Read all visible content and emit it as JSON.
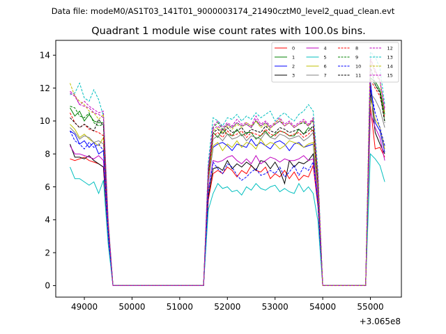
{
  "figure_suptitle": "Data file: modeM0/AS1T03_141T01_9000003174_21490cztM0_level2_quad_clean.evt",
  "chart_data": {
    "type": "line",
    "title": "Quadrant 1 module wise count rates with 100.0s bins.",
    "xlabel": "",
    "ylabel": "",
    "x_offset_label": "+3.065e8",
    "xlim": [
      48400,
      55650
    ],
    "ylim": [
      -0.7,
      14.9
    ],
    "xticks": [
      49000,
      50000,
      51000,
      52000,
      53000,
      54000,
      55000
    ],
    "yticks": [
      0,
      2,
      4,
      6,
      8,
      10,
      12,
      14
    ],
    "grid": false,
    "legend": {
      "position": "top-right",
      "columns": 4
    },
    "x": [
      48700,
      48800,
      48900,
      49000,
      49100,
      49200,
      49300,
      49400,
      49500,
      49600,
      49700,
      49800,
      49900,
      50000,
      50100,
      50200,
      50300,
      50400,
      50500,
      50600,
      50700,
      50800,
      50900,
      51000,
      51100,
      51200,
      51300,
      51400,
      51500,
      51600,
      51700,
      51800,
      51900,
      52000,
      52100,
      52200,
      52300,
      52400,
      52500,
      52600,
      52700,
      52800,
      52900,
      53000,
      53100,
      53200,
      53300,
      53400,
      53500,
      53600,
      53700,
      53800,
      53900,
      54000,
      54100,
      54200,
      54300,
      54400,
      54500,
      54600,
      54700,
      54800,
      54900,
      55000,
      55100,
      55200,
      55300
    ],
    "series": [
      {
        "name": "0",
        "color": "#ff0000",
        "dash": "solid",
        "values": [
          7.7,
          7.6,
          7.7,
          7.8,
          7.6,
          7.5,
          7.4,
          7.2,
          2.8,
          0.0,
          0,
          0,
          0,
          0,
          0,
          0,
          0,
          0,
          0,
          0,
          0,
          0,
          0,
          0,
          0,
          0,
          0,
          0,
          0,
          5.2,
          6.8,
          7.0,
          6.8,
          7.2,
          7.0,
          6.6,
          7.0,
          6.8,
          7.3,
          7.0,
          6.9,
          7.2,
          6.5,
          6.8,
          6.6,
          7.0,
          6.5,
          6.9,
          6.4,
          6.7,
          6.6,
          7.3,
          4.8,
          0.0,
          0,
          0,
          0,
          0,
          0,
          0,
          0,
          0,
          0,
          10.9,
          8.3,
          8.4,
          7.8
        ]
      },
      {
        "name": "1",
        "color": "#008000",
        "dash": "solid",
        "values": [
          10.8,
          10.3,
          10.6,
          10.0,
          10.4,
          10.0,
          9.9,
          9.9,
          3.8,
          0.0,
          0,
          0,
          0,
          0,
          0,
          0,
          0,
          0,
          0,
          0,
          0,
          0,
          0,
          0,
          0,
          0,
          0,
          0,
          0,
          6.9,
          9.3,
          9.0,
          9.5,
          9.2,
          9.1,
          9.5,
          9.1,
          9.3,
          9.3,
          8.9,
          9.1,
          9.4,
          9.0,
          9.2,
          9.4,
          9.3,
          9.1,
          9.1,
          9.5,
          9.2,
          9.6,
          9.4,
          6.1,
          0.0,
          0,
          0,
          0,
          0,
          0,
          0,
          0,
          0,
          0,
          12.6,
          12.4,
          11.9,
          10.4
        ]
      },
      {
        "name": "2",
        "color": "#0000ff",
        "dash": "solid",
        "values": [
          9.4,
          9.2,
          8.6,
          8.8,
          8.4,
          8.7,
          8.0,
          8.2,
          3.0,
          0.0,
          0,
          0,
          0,
          0,
          0,
          0,
          0,
          0,
          0,
          0,
          0,
          0,
          0,
          0,
          0,
          0,
          0,
          0,
          0,
          6.3,
          8.4,
          8.6,
          8.7,
          8.5,
          8.2,
          8.6,
          8.5,
          8.4,
          8.9,
          8.5,
          8.7,
          8.5,
          8.3,
          8.7,
          8.8,
          8.6,
          8.2,
          8.6,
          8.7,
          8.4,
          8.5,
          8.6,
          5.6,
          0.0,
          0,
          0,
          0,
          0,
          0,
          0,
          0,
          0,
          0,
          12.4,
          9.9,
          9.4,
          8.1
        ]
      },
      {
        "name": "3",
        "color": "#000000",
        "dash": "solid",
        "values": [
          8.6,
          7.8,
          7.8,
          7.7,
          7.9,
          7.6,
          7.4,
          7.2,
          2.9,
          0.0,
          0,
          0,
          0,
          0,
          0,
          0,
          0,
          0,
          0,
          0,
          0,
          0,
          0,
          0,
          0,
          0,
          0,
          0,
          0,
          5.4,
          7.1,
          7.2,
          7.0,
          7.6,
          7.1,
          7.4,
          7.2,
          7.5,
          7.3,
          7.0,
          7.6,
          7.5,
          7.1,
          7.5,
          7.0,
          6.2,
          7.6,
          7.2,
          7.5,
          7.4,
          7.6,
          8.0,
          5.0,
          0.0,
          0,
          0,
          0,
          0,
          0,
          0,
          0,
          0,
          0,
          11.9,
          9.3,
          8.6,
          8.0
        ]
      },
      {
        "name": "4",
        "color": "#bf00bf",
        "dash": "solid",
        "values": [
          8.5,
          8.0,
          8.0,
          7.9,
          7.8,
          7.7,
          7.9,
          7.6,
          3.0,
          0.0,
          0,
          0,
          0,
          0,
          0,
          0,
          0,
          0,
          0,
          0,
          0,
          0,
          0,
          0,
          0,
          0,
          0,
          0,
          0,
          5.8,
          7.6,
          7.5,
          7.6,
          7.8,
          7.9,
          7.6,
          7.4,
          7.7,
          7.4,
          7.9,
          7.4,
          7.6,
          7.8,
          7.7,
          7.5,
          7.7,
          7.6,
          7.6,
          7.7,
          7.9,
          7.6,
          7.7,
          5.2,
          0.0,
          0,
          0,
          0,
          0,
          0,
          0,
          0,
          0,
          0,
          10.5,
          9.6,
          9.0,
          7.6
        ]
      },
      {
        "name": "5",
        "color": "#00bfbf",
        "dash": "solid",
        "values": [
          7.2,
          6.5,
          6.5,
          6.3,
          6.1,
          6.3,
          5.6,
          6.4,
          2.5,
          0.0,
          0,
          0,
          0,
          0,
          0,
          0,
          0,
          0,
          0,
          0,
          0,
          0,
          0,
          0,
          0,
          0,
          0,
          0,
          0,
          4.6,
          5.6,
          6.2,
          5.9,
          6.0,
          5.7,
          5.8,
          5.5,
          6.0,
          5.8,
          6.2,
          5.9,
          5.8,
          6.0,
          6.1,
          5.7,
          5.9,
          5.7,
          5.6,
          6.2,
          5.7,
          6.0,
          5.6,
          3.9,
          0.0,
          0,
          0,
          0,
          0,
          0,
          0,
          0,
          0,
          0,
          8.0,
          7.7,
          7.3,
          6.3
        ]
      },
      {
        "name": "6",
        "color": "#bfbf00",
        "dash": "solid",
        "values": [
          9.8,
          9.5,
          9.0,
          9.2,
          8.9,
          8.7,
          8.5,
          9.0,
          3.4,
          0.0,
          0,
          0,
          0,
          0,
          0,
          0,
          0,
          0,
          0,
          0,
          0,
          0,
          0,
          0,
          0,
          0,
          0,
          0,
          0,
          6.4,
          8.5,
          8.7,
          8.2,
          8.6,
          8.4,
          8.8,
          8.4,
          8.7,
          8.6,
          8.3,
          8.9,
          8.5,
          8.7,
          8.6,
          8.3,
          8.5,
          8.8,
          8.7,
          8.6,
          8.4,
          8.6,
          8.7,
          5.8,
          0.0,
          0,
          0,
          0,
          0,
          0,
          0,
          0,
          0,
          0,
          11.4,
          10.1,
          9.6,
          8.3
        ]
      },
      {
        "name": "7",
        "color": "#808080",
        "dash": "solid",
        "values": [
          9.6,
          9.3,
          8.9,
          9.1,
          9.0,
          8.7,
          8.8,
          8.6,
          3.3,
          0.0,
          0,
          0,
          0,
          0,
          0,
          0,
          0,
          0,
          0,
          0,
          0,
          0,
          0,
          0,
          0,
          0,
          0,
          0,
          0,
          6.6,
          8.9,
          9.1,
          8.8,
          9.2,
          8.9,
          9.0,
          9.2,
          8.8,
          9.1,
          9.0,
          8.9,
          9.3,
          9.0,
          8.9,
          9.2,
          9.1,
          8.9,
          9.0,
          9.1,
          8.8,
          9.0,
          9.3,
          6.0,
          0.0,
          0,
          0,
          0,
          0,
          0,
          0,
          0,
          0,
          0,
          11.7,
          11.3,
          10.7,
          9.6
        ]
      },
      {
        "name": "8",
        "color": "#ff0000",
        "dash": "dashed",
        "values": [
          10.5,
          9.9,
          9.6,
          9.8,
          9.5,
          9.4,
          9.3,
          9.1,
          3.6,
          0.0,
          0,
          0,
          0,
          0,
          0,
          0,
          0,
          0,
          0,
          0,
          0,
          0,
          0,
          0,
          0,
          0,
          0,
          0,
          0,
          6.6,
          9.1,
          9.3,
          9.0,
          9.4,
          9.1,
          9.2,
          9.4,
          9.0,
          9.3,
          9.2,
          9.1,
          9.5,
          9.2,
          9.1,
          9.4,
          9.3,
          9.1,
          9.2,
          9.3,
          9.0,
          9.2,
          9.5,
          6.2,
          0.0,
          0,
          0,
          0,
          0,
          0,
          0,
          0,
          0,
          0,
          12.5,
          12.0,
          11.5,
          10.2
        ]
      },
      {
        "name": "9",
        "color": "#008000",
        "dash": "dashed",
        "values": [
          10.9,
          10.8,
          10.3,
          10.2,
          10.5,
          9.9,
          9.7,
          9.8,
          3.7,
          0.0,
          0,
          0,
          0,
          0,
          0,
          0,
          0,
          0,
          0,
          0,
          0,
          0,
          0,
          0,
          0,
          0,
          0,
          0,
          0,
          6.9,
          9.6,
          9.9,
          9.5,
          9.8,
          9.6,
          9.9,
          9.7,
          9.8,
          9.6,
          10.0,
          9.7,
          9.9,
          9.6,
          9.8,
          10.0,
          9.7,
          9.9,
          9.6,
          9.8,
          9.9,
          9.7,
          10.0,
          6.5,
          0.0,
          0,
          0,
          0,
          0,
          0,
          0,
          0,
          0,
          0,
          12.7,
          12.2,
          11.8,
          10.0
        ]
      },
      {
        "name": "10",
        "color": "#0000ff",
        "dash": "dashed",
        "values": [
          9.4,
          8.8,
          8.6,
          8.3,
          8.7,
          8.4,
          8.6,
          8.2,
          3.1,
          0.0,
          0,
          0,
          0,
          0,
          0,
          0,
          0,
          0,
          0,
          0,
          0,
          0,
          0,
          0,
          0,
          0,
          0,
          0,
          0,
          5.7,
          7.5,
          7.1,
          6.8,
          7.4,
          7.2,
          6.7,
          6.4,
          6.6,
          6.9,
          7.1,
          6.7,
          6.8,
          7.0,
          6.8,
          7.2,
          6.6,
          6.9,
          7.3,
          6.7,
          7.2,
          7.0,
          7.5,
          4.9,
          0.0,
          0,
          0,
          0,
          0,
          0,
          0,
          0,
          0,
          0,
          12.0,
          10.5,
          9.6,
          8.5
        ]
      },
      {
        "name": "11",
        "color": "#000000",
        "dash": "dashed",
        "values": [
          10.2,
          9.9,
          9.6,
          9.8,
          9.6,
          9.4,
          10.1,
          9.7,
          3.7,
          0.0,
          0,
          0,
          0,
          0,
          0,
          0,
          0,
          0,
          0,
          0,
          0,
          0,
          0,
          0,
          0,
          0,
          0,
          0,
          0,
          6.8,
          9.3,
          9.5,
          9.2,
          9.6,
          9.3,
          9.4,
          9.6,
          9.2,
          9.5,
          9.4,
          9.3,
          9.7,
          9.4,
          9.3,
          9.6,
          9.5,
          9.3,
          9.4,
          9.5,
          9.2,
          9.4,
          9.7,
          6.3,
          0.0,
          0,
          0,
          0,
          0,
          0,
          0,
          0,
          0,
          0,
          13.3,
          12.2,
          11.7,
          9.9
        ]
      },
      {
        "name": "12",
        "color": "#bf00bf",
        "dash": "dashed",
        "values": [
          11.8,
          11.6,
          11.0,
          11.2,
          10.9,
          10.7,
          10.5,
          10.6,
          3.9,
          0.0,
          0,
          0,
          0,
          0,
          0,
          0,
          0,
          0,
          0,
          0,
          0,
          0,
          0,
          0,
          0,
          0,
          0,
          0,
          0,
          7.2,
          9.7,
          10.0,
          9.6,
          9.9,
          9.7,
          10.1,
          9.8,
          9.9,
          9.7,
          10.3,
          9.8,
          10.0,
          9.7,
          9.9,
          10.2,
          9.8,
          10.0,
          9.7,
          9.9,
          10.1,
          9.8,
          10.2,
          6.7,
          0.0,
          0,
          0,
          0,
          0,
          0,
          0,
          0,
          0,
          0,
          13.6,
          13.0,
          12.4,
          10.8
        ]
      },
      {
        "name": "13",
        "color": "#00bfbf",
        "dash": "dashed",
        "values": [
          11.6,
          11.7,
          12.3,
          11.4,
          11.2,
          11.9,
          11.3,
          10.3,
          4.0,
          0.0,
          0,
          0,
          0,
          0,
          0,
          0,
          0,
          0,
          0,
          0,
          0,
          0,
          0,
          0,
          0,
          0,
          0,
          0,
          0,
          7.5,
          10.2,
          10.0,
          9.7,
          10.2,
          10.1,
          10.4,
          10.0,
          10.3,
          10.1,
          10.5,
          10.2,
          10.4,
          10.6,
          10.0,
          10.3,
          10.5,
          10.2,
          10.0,
          10.4,
          10.6,
          11.0,
          10.6,
          7.0,
          0.0,
          0,
          0,
          0,
          0,
          0,
          0,
          0,
          0,
          0,
          14.2,
          13.9,
          13.2,
          11.0
        ]
      },
      {
        "name": "14",
        "color": "#bfbf00",
        "dash": "dashed",
        "values": [
          12.3,
          11.5,
          11.2,
          11.0,
          10.6,
          10.5,
          10.1,
          10.4,
          3.9,
          0.0,
          0,
          0,
          0,
          0,
          0,
          0,
          0,
          0,
          0,
          0,
          0,
          0,
          0,
          0,
          0,
          0,
          0,
          0,
          0,
          7.0,
          9.4,
          9.6,
          9.3,
          9.7,
          9.5,
          9.8,
          9.6,
          9.9,
          9.7,
          10.0,
          9.6,
          9.8,
          9.5,
          9.9,
          10.1,
          9.7,
          9.9,
          9.6,
          9.8,
          10.0,
          9.7,
          10.1,
          6.6,
          0.0,
          0,
          0,
          0,
          0,
          0,
          0,
          0,
          0,
          0,
          13.7,
          12.9,
          12.4,
          10.5
        ]
      },
      {
        "name": "15",
        "color": "#bf00bf",
        "dash": "dashed",
        "values": [
          11.7,
          11.5,
          11.0,
          10.9,
          10.8,
          10.5,
          10.4,
          10.2,
          3.8,
          0.0,
          0,
          0,
          0,
          0,
          0,
          0,
          0,
          0,
          0,
          0,
          0,
          0,
          0,
          0,
          0,
          0,
          0,
          0,
          0,
          7.1,
          9.5,
          9.7,
          9.4,
          9.8,
          9.6,
          9.9,
          9.7,
          9.8,
          9.6,
          10.1,
          9.7,
          9.9,
          9.6,
          9.8,
          10.0,
          9.7,
          9.9,
          9.6,
          9.8,
          10.0,
          9.7,
          10.1,
          6.6,
          0.0,
          0,
          0,
          0,
          0,
          0,
          0,
          0,
          0,
          0,
          13.8,
          13.1,
          12.5,
          10.6
        ]
      }
    ]
  }
}
